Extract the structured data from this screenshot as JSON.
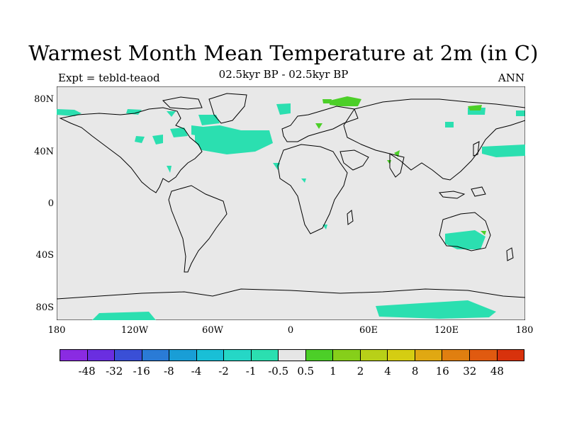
{
  "title": "Warmest Month Mean Temperature at 2m (in C)",
  "left_label": "Expt = tebld-teaod",
  "center_label": "02.5kyr BP - 02.5kyr BP",
  "right_label": "ANN",
  "map": {
    "background": "#e8e8e8",
    "lat_labels": [
      "80N",
      "40N",
      "0",
      "40S",
      "80S"
    ],
    "lon_labels": [
      "180",
      "120W",
      "60W",
      "0",
      "60E",
      "120E",
      "180"
    ]
  },
  "colorbar": {
    "colors": [
      "#8a2be2",
      "#6a2ee0",
      "#3a4fd6",
      "#2a7bd6",
      "#199ed6",
      "#19bfd6",
      "#25d7c6",
      "#2bdfb0",
      "#e6e6e6",
      "#4ccf28",
      "#86cf1a",
      "#b8d018",
      "#d5cd12",
      "#e0a812",
      "#e07f10",
      "#e05a10",
      "#d8320c"
    ],
    "labels": [
      "-48",
      "-32",
      "-16",
      "-8",
      "-4",
      "-2",
      "-1",
      "-0.5",
      "0.5",
      "1",
      "2",
      "4",
      "8",
      "16",
      "32",
      "48"
    ]
  },
  "colors": {
    "teal": "#2bdfb0",
    "green": "#4ccf28",
    "yellow_green": "#86cf1a"
  }
}
